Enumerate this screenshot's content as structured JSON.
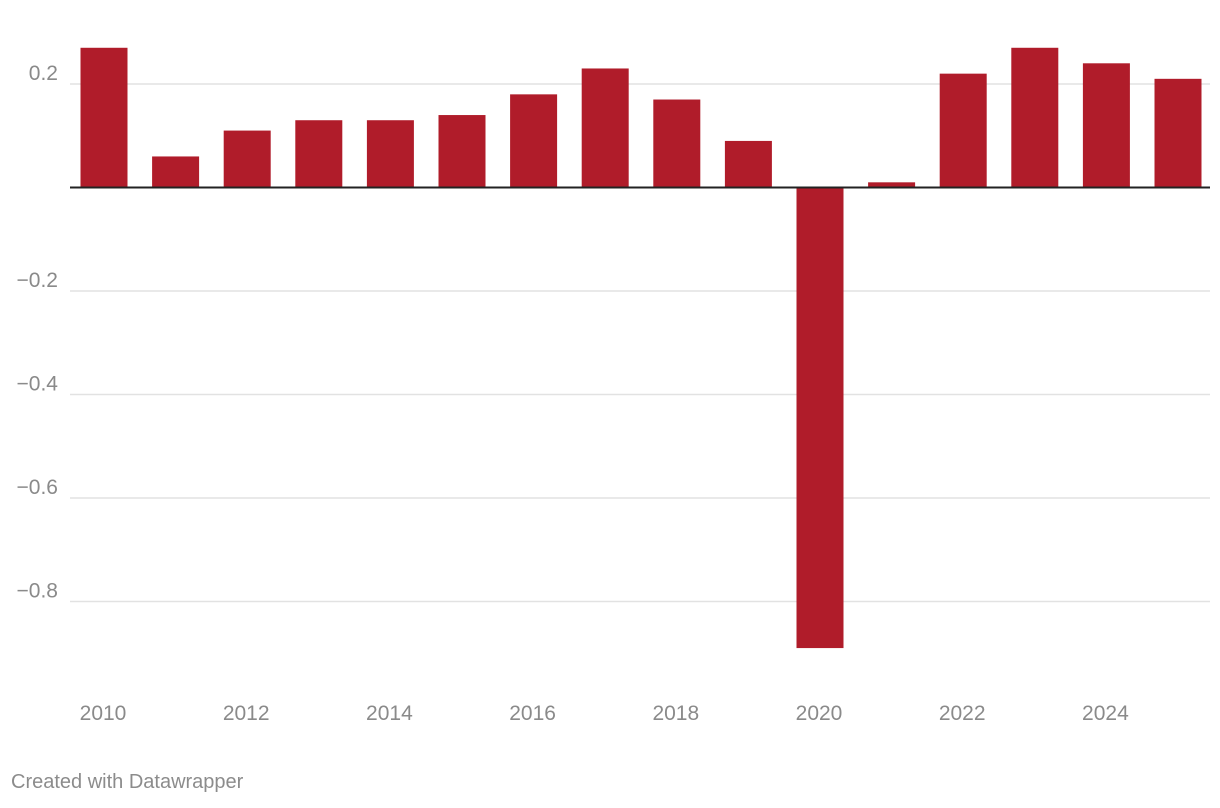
{
  "chart_data": {
    "type": "bar",
    "title": "",
    "xlabel": "",
    "ylabel": "",
    "categories": [
      "2010",
      "2011",
      "2012",
      "2013",
      "2014",
      "2015",
      "2016",
      "2017",
      "2018",
      "2019",
      "2020",
      "2021",
      "2022",
      "2023",
      "2024",
      "2025"
    ],
    "values": [
      0.27,
      0.06,
      0.11,
      0.13,
      0.13,
      0.14,
      0.18,
      0.23,
      0.17,
      0.09,
      -0.89,
      0.01,
      0.22,
      0.27,
      0.24,
      0.21
    ],
    "ylim": [
      -0.9,
      0.27
    ],
    "yticks": [
      0.2,
      0,
      -0.2,
      -0.4,
      -0.6,
      -0.8
    ],
    "ytick_labels": [
      "0.2",
      "",
      "−0.2",
      "−0.4",
      "−0.6",
      "−0.8"
    ],
    "xtick_labels": [
      "2010",
      "2012",
      "2014",
      "2016",
      "2018",
      "2020",
      "2022",
      "2024"
    ],
    "bar_color": "#b01c2a",
    "grid": true,
    "legend": "none"
  },
  "credit": "Created with Datawrapper"
}
